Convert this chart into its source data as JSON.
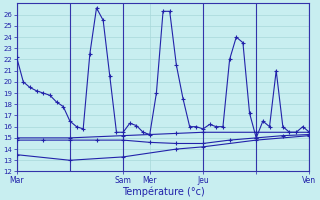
{
  "xlabel": "Température (°c)",
  "bg_color": "#c8eef0",
  "grid_color": "#a8d8da",
  "line_color": "#2222aa",
  "day_line_color": "#3333aa",
  "ylim_min": 12,
  "ylim_max": 27,
  "xlim_min": 0,
  "xlim_max": 264,
  "yticks": [
    12,
    13,
    14,
    15,
    16,
    17,
    18,
    19,
    20,
    21,
    22,
    23,
    24,
    25,
    26
  ],
  "x_day_lines": [
    0,
    48,
    96,
    168,
    216,
    264
  ],
  "x_tick_positions": [
    0,
    96,
    120,
    168,
    216,
    264
  ],
  "x_tick_labels": [
    "Mar",
    "Sam",
    "Mer",
    "Jeu",
    "",
    "Ven"
  ],
  "series1_x": [
    0,
    6,
    12,
    18,
    24,
    30,
    36,
    42,
    48,
    54,
    60,
    66,
    72,
    78,
    84,
    90,
    96,
    102,
    108,
    114,
    120,
    126,
    132,
    138,
    144,
    150,
    156,
    162,
    168,
    174,
    180,
    186,
    192,
    198,
    204,
    210,
    216,
    222,
    228,
    234,
    240,
    246,
    252,
    258,
    264
  ],
  "series1_y": [
    22.2,
    20.0,
    19.5,
    19.2,
    19.0,
    18.8,
    18.2,
    17.8,
    16.5,
    16.0,
    15.8,
    22.5,
    26.6,
    25.5,
    20.5,
    15.5,
    15.5,
    16.3,
    16.1,
    15.5,
    15.3,
    19.0,
    26.3,
    26.3,
    21.5,
    18.5,
    16.0,
    16.0,
    15.8,
    16.2,
    16.0,
    16.0,
    22.0,
    24.0,
    23.5,
    17.2,
    15.0,
    16.5,
    16.0,
    21.0,
    16.0,
    15.5,
    15.5,
    16.0,
    15.5
  ],
  "series2_x": [
    0,
    24,
    48,
    72,
    96,
    120,
    144,
    168,
    192,
    216,
    240,
    264
  ],
  "series2_y": [
    14.8,
    14.8,
    14.8,
    14.8,
    14.8,
    14.6,
    14.5,
    14.5,
    14.8,
    15.0,
    15.2,
    15.3
  ],
  "series3_x": [
    0,
    48,
    96,
    144,
    168,
    216,
    264
  ],
  "series3_y": [
    13.5,
    13.0,
    13.3,
    14.0,
    14.2,
    14.8,
    15.2
  ],
  "series4_x": [
    0,
    48,
    96,
    144,
    168,
    216,
    264
  ],
  "series4_y": [
    15.0,
    15.0,
    15.2,
    15.4,
    15.5,
    15.5,
    15.5
  ]
}
